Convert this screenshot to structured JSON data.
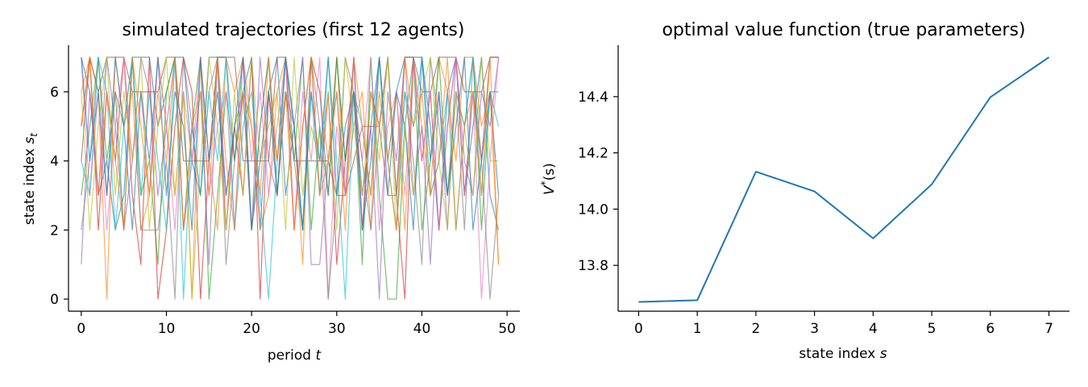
{
  "chart_data": [
    {
      "type": "line",
      "title": "simulated trajectories (first 12 agents)",
      "xlabel": "period",
      "xlabel_var": "t",
      "ylabel": "state index",
      "ylabel_var": "s",
      "ylabel_sub": "t",
      "xlim": [
        -1.5,
        51.5
      ],
      "ylim": [
        -0.35,
        7.35
      ],
      "xticks": [
        0,
        10,
        20,
        30,
        40,
        50
      ],
      "yticks": [
        0,
        2,
        4,
        6
      ],
      "grid": false,
      "colors": [
        "#1f77b4",
        "#ff7f0e",
        "#2ca02c",
        "#d62728",
        "#9467bd",
        "#8c564b",
        "#e377c2",
        "#7f7f7f",
        "#bcbd22",
        "#17becf",
        "#1f77b4",
        "#ff7f0e"
      ],
      "series": [
        {
          "values": [
            7,
            6,
            3,
            4,
            2,
            3,
            7,
            7,
            7,
            5,
            6,
            7,
            7,
            4,
            3,
            7,
            7,
            7,
            4,
            6,
            7,
            2,
            6,
            7,
            3,
            5,
            2,
            7,
            6,
            3,
            7,
            4,
            6,
            3,
            5,
            7,
            4,
            6,
            7,
            7,
            7,
            5,
            2,
            6,
            7,
            3,
            5,
            7,
            3,
            2
          ]
        },
        {
          "values": [
            6,
            7,
            6,
            0,
            7,
            5,
            6,
            2,
            3,
            7,
            5,
            3,
            6,
            0,
            7,
            4,
            2,
            7,
            6,
            7,
            5,
            2,
            3,
            6,
            7,
            5,
            1,
            7,
            6,
            4,
            7,
            3,
            5,
            6,
            2,
            7,
            4,
            6,
            2,
            7,
            5,
            3,
            7,
            6,
            4,
            7,
            7,
            5,
            6,
            1
          ]
        },
        {
          "values": [
            3,
            5,
            7,
            4,
            6,
            2,
            7,
            3,
            4,
            1,
            6,
            7,
            2,
            5,
            7,
            0,
            3,
            6,
            4,
            7,
            2,
            5,
            7,
            3,
            6,
            4,
            7,
            2,
            5,
            3,
            7,
            4,
            6,
            1,
            7,
            3,
            0,
            0,
            5,
            7,
            2,
            4,
            7,
            3,
            6,
            5,
            7,
            2,
            6,
            6
          ]
        },
        {
          "values": [
            5,
            7,
            2,
            6,
            4,
            7,
            3,
            1,
            7,
            0,
            2,
            5,
            7,
            6,
            0,
            4,
            7,
            2,
            5,
            3,
            7,
            0,
            6,
            4,
            7,
            2,
            5,
            7,
            3,
            6,
            1,
            4,
            7,
            2,
            6,
            5,
            7,
            3,
            0,
            7,
            4,
            6,
            2,
            5,
            7,
            3,
            6,
            4,
            7,
            7
          ]
        },
        {
          "values": [
            1,
            6,
            3,
            7,
            5,
            2,
            4,
            7,
            6,
            3,
            5,
            7,
            2,
            4,
            6,
            1,
            7,
            3,
            5,
            6,
            2,
            7,
            4,
            3,
            6,
            5,
            7,
            1,
            1,
            4,
            6,
            3,
            7,
            2,
            5,
            0,
            6,
            4,
            7,
            3,
            5,
            1,
            6,
            2,
            7,
            4,
            3,
            6,
            5,
            7
          ]
        },
        {
          "values": [
            4,
            7,
            6,
            7,
            7,
            7,
            6,
            6,
            6,
            6,
            7,
            7,
            4,
            4,
            4,
            4,
            7,
            7,
            7,
            4,
            4,
            4,
            4,
            7,
            7,
            4,
            4,
            4,
            4,
            4,
            3,
            3,
            4,
            5,
            5,
            5,
            3,
            3,
            7,
            7,
            6,
            6,
            7,
            7,
            7,
            6,
            6,
            6,
            7,
            7
          ]
        },
        {
          "values": [
            7,
            3,
            6,
            2,
            5,
            7,
            4,
            6,
            3,
            7,
            5,
            2,
            6,
            4,
            7,
            3,
            5,
            6,
            2,
            7,
            4,
            6,
            3,
            5,
            7,
            2,
            6,
            4,
            7,
            0,
            5,
            3,
            6,
            4,
            7,
            2,
            5,
            6,
            3,
            7,
            4,
            6,
            2,
            5,
            7,
            3,
            6,
            0,
            4,
            7
          ]
        },
        {
          "values": [
            2,
            4,
            7,
            3,
            6,
            5,
            7,
            2,
            2,
            2,
            4,
            0,
            7,
            5,
            3,
            6,
            7,
            1,
            4,
            6,
            2,
            5,
            7,
            3,
            6,
            4,
            2,
            7,
            5,
            0,
            3,
            7,
            6,
            4,
            2,
            5,
            7,
            3,
            6,
            4,
            1,
            7,
            5,
            3,
            6,
            2,
            7,
            4,
            0,
            3
          ]
        },
        {
          "values": [
            6,
            2,
            5,
            7,
            3,
            6,
            4,
            7,
            2,
            5,
            7,
            3,
            6,
            0,
            4,
            7,
            5,
            2,
            6,
            3,
            7,
            4,
            5,
            6,
            2,
            7,
            3,
            5,
            4,
            6,
            2,
            7,
            5,
            3,
            6,
            4,
            7,
            2,
            5,
            3,
            6,
            7,
            4,
            2,
            6,
            5,
            3,
            7,
            4,
            4
          ]
        },
        {
          "values": [
            4,
            3,
            7,
            6,
            2,
            5,
            7,
            3,
            6,
            4,
            2,
            7,
            0,
            5,
            3,
            6,
            4,
            7,
            2,
            5,
            6,
            3,
            0,
            4,
            7,
            5,
            2,
            6,
            3,
            7,
            4,
            0,
            6,
            5,
            3,
            7,
            4,
            2,
            6,
            5,
            7,
            3,
            4,
            6,
            2,
            5,
            7,
            3,
            6,
            5
          ]
        },
        {
          "values": [
            7,
            4,
            6,
            3,
            7,
            5,
            2,
            6,
            4,
            7,
            3,
            6,
            5,
            2,
            7,
            4,
            6,
            3,
            5,
            7,
            2,
            4,
            6,
            3,
            7,
            5,
            2,
            6,
            4,
            7,
            3,
            5,
            6,
            2,
            4,
            7,
            3,
            6,
            5,
            2,
            7,
            4,
            6,
            3,
            5,
            7,
            2,
            4,
            6,
            3
          ]
        },
        {
          "values": [
            5,
            7,
            3,
            6,
            4,
            2,
            7,
            5,
            3,
            6,
            4,
            7,
            2,
            5,
            6,
            3,
            7,
            4,
            2,
            6,
            5,
            3,
            7,
            4,
            6,
            2,
            5,
            7,
            3,
            4,
            6,
            2,
            7,
            5,
            3,
            6,
            4,
            2,
            7,
            5,
            6,
            3,
            4,
            7,
            2,
            5,
            6,
            3,
            7,
            1
          ]
        }
      ]
    },
    {
      "type": "line",
      "title": "optimal value function (true parameters)",
      "xlabel": "state index",
      "xlabel_var": "s",
      "ylabel_var": "V",
      "ylabel_sup": "*",
      "ylabel_arg": "(s)",
      "xlim": [
        -0.35,
        7.35
      ],
      "ylim": [
        13.637,
        14.583
      ],
      "xticks": [
        0,
        1,
        2,
        3,
        4,
        5,
        6,
        7
      ],
      "yticks": [
        "13.8",
        "14.0",
        "14.2",
        "14.4"
      ],
      "grid": false,
      "color": "#1f77b4",
      "x": [
        0,
        1,
        2,
        3,
        4,
        5,
        6,
        7
      ],
      "values": [
        13.67,
        13.676,
        14.133,
        14.063,
        13.896,
        14.088,
        14.398,
        14.54
      ]
    }
  ]
}
